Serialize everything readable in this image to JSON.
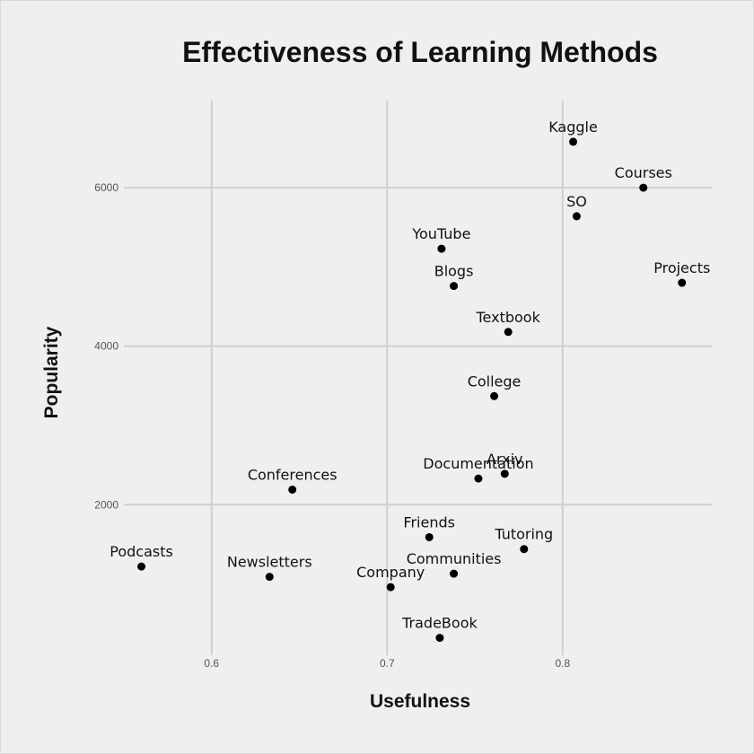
{
  "chart_data": {
    "type": "scatter",
    "title": "Effectiveness of Learning Methods",
    "xlabel": "Usefulness",
    "ylabel": "Popularity",
    "xlim": [
      0.55,
      0.885
    ],
    "ylim": [
      100,
      7100
    ],
    "xticks": [
      0.6,
      0.7,
      0.8
    ],
    "xtick_labels": [
      "0.6",
      "0.7",
      "0.8"
    ],
    "yticks": [
      2000,
      4000,
      6000
    ],
    "ytick_labels": [
      "2000",
      "4000",
      "6000"
    ],
    "grid": true,
    "background": "#efefef",
    "grid_color": "#cfcfcf",
    "point_color": "#000000",
    "points": [
      {
        "label": "Kaggle",
        "x": 0.806,
        "y": 6580
      },
      {
        "label": "Courses",
        "x": 0.846,
        "y": 6000
      },
      {
        "label": "SO",
        "x": 0.808,
        "y": 5640
      },
      {
        "label": "YouTube",
        "x": 0.731,
        "y": 5230
      },
      {
        "label": "Projects",
        "x": 0.868,
        "y": 4800
      },
      {
        "label": "Blogs",
        "x": 0.738,
        "y": 4760
      },
      {
        "label": "Textbook",
        "x": 0.769,
        "y": 4180
      },
      {
        "label": "College",
        "x": 0.761,
        "y": 3370
      },
      {
        "label": "Arxiv",
        "x": 0.767,
        "y": 2390
      },
      {
        "label": "Documentation",
        "x": 0.752,
        "y": 2330
      },
      {
        "label": "Conferences",
        "x": 0.646,
        "y": 2190
      },
      {
        "label": "Friends",
        "x": 0.724,
        "y": 1590
      },
      {
        "label": "Tutoring",
        "x": 0.778,
        "y": 1440
      },
      {
        "label": "Podcasts",
        "x": 0.56,
        "y": 1220
      },
      {
        "label": "Communities",
        "x": 0.738,
        "y": 1130
      },
      {
        "label": "Newsletters",
        "x": 0.633,
        "y": 1090
      },
      {
        "label": "Company",
        "x": 0.702,
        "y": 960
      },
      {
        "label": "TradeBook",
        "x": 0.73,
        "y": 320
      }
    ]
  }
}
